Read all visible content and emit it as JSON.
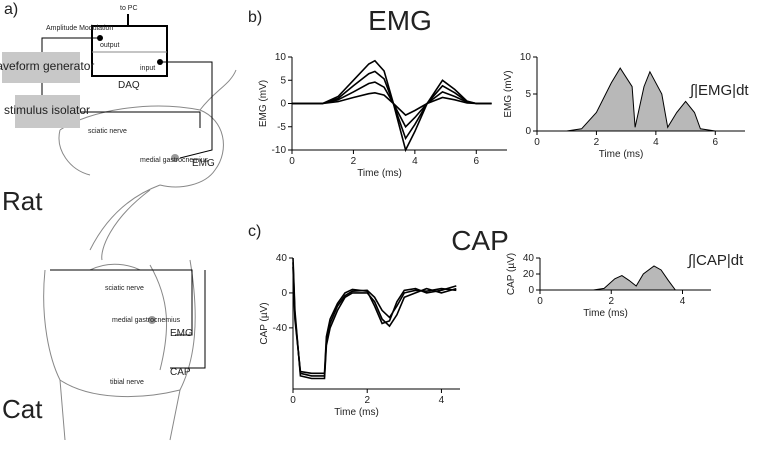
{
  "panel_labels": {
    "a": "a)",
    "b": "b)",
    "c": "c)"
  },
  "setup": {
    "to_pc": "to PC",
    "amplitude_modulation": "Amplitude Modulation",
    "output": "output",
    "input": "input",
    "daq": "DAQ",
    "waveform_generator": "waveform generator",
    "stimulus_isolator": "stimulus isolator"
  },
  "rat": {
    "label": "Rat",
    "sciatic_nerve": "sciatic nerve",
    "muscle": "medial gastrocnemius",
    "emg": "EMG"
  },
  "cat": {
    "label": "Cat",
    "sciatic_nerve": "sciatic nerve",
    "muscle": "medial gastrocnemius",
    "emg": "EMG",
    "cap": "CAP",
    "tibial_nerve": "tibial nerve"
  },
  "chart_data": [
    {
      "type": "line",
      "title": "EMG",
      "x_label": "Time (ms)",
      "y_label": "EMG (mV)",
      "xlim": [
        0,
        7
      ],
      "ylim": [
        -10,
        10
      ],
      "xticks": [
        0,
        2,
        4,
        6
      ],
      "yticks": [
        -10,
        -5,
        0,
        5,
        10
      ],
      "x": [
        0,
        1,
        1.5,
        2,
        2.5,
        2.7,
        3,
        3.3,
        3.7,
        4,
        4.4,
        4.9,
        5.3,
        5.7,
        6,
        6.5
      ],
      "series": [
        {
          "color": "#000000",
          "values": [
            0,
            0,
            1.5,
            5,
            8.5,
            9.2,
            7,
            0,
            -10,
            -6,
            0,
            5,
            3,
            0.5,
            0,
            0
          ]
        },
        {
          "color": "#000000",
          "values": [
            0,
            0,
            1.1,
            3.8,
            6.4,
            6.9,
            5.3,
            0,
            -7.5,
            -4.5,
            0,
            3.8,
            2.3,
            0.4,
            0,
            0
          ]
        },
        {
          "color": "#000000",
          "values": [
            0,
            0,
            0.8,
            2.5,
            4.3,
            4.6,
            3.5,
            0,
            -5,
            -3,
            0,
            2.5,
            1.5,
            0.3,
            0,
            0
          ]
        },
        {
          "color": "#000000",
          "values": [
            0,
            0,
            0.4,
            1.3,
            2.1,
            2.3,
            1.8,
            0,
            -2.5,
            -1.5,
            0,
            1.3,
            0.8,
            0.1,
            0,
            0
          ]
        }
      ]
    },
    {
      "type": "area",
      "annotation": "∫|EMG|dt",
      "x_label": "Time (ms)",
      "y_label": "EMG (mV)",
      "xlim": [
        0,
        7
      ],
      "ylim": [
        0,
        10
      ],
      "xticks": [
        0,
        2,
        4,
        6
      ],
      "yticks": [
        0,
        5,
        10
      ],
      "x": [
        0,
        1,
        1.5,
        2,
        2.5,
        2.8,
        3.2,
        3.3,
        3.6,
        3.8,
        4.2,
        4.4,
        4.7,
        5,
        5.3,
        5.5,
        6,
        7
      ],
      "series": [
        {
          "color": "#b8b8b8",
          "values": [
            0,
            0,
            0.3,
            2.5,
            6.5,
            8.5,
            6,
            0.5,
            6,
            8,
            5,
            0.5,
            2.5,
            4,
            2.5,
            0.3,
            0,
            0
          ]
        }
      ]
    },
    {
      "type": "line",
      "title": "CAP",
      "x_label": "Time (ms)",
      "y_label": "CAP (µV)",
      "xlim": [
        0,
        4.5
      ],
      "ylim": [
        -110,
        40
      ],
      "xticks": [
        0,
        2,
        4
      ],
      "yticks": [
        -40,
        0,
        40
      ],
      "x": [
        0,
        0.05,
        0.2,
        0.5,
        0.85,
        0.9,
        1.0,
        1.2,
        1.4,
        1.6,
        2.0,
        2.2,
        2.4,
        2.6,
        2.8,
        3.0,
        3.3,
        3.6,
        4.0,
        4.4
      ],
      "series": [
        {
          "color": "#000000",
          "values": [
            40,
            -20,
            -95,
            -98,
            -98,
            -60,
            -40,
            -20,
            -5,
            0,
            0,
            -10,
            -30,
            -38,
            -25,
            -5,
            0,
            5,
            0,
            5
          ]
        },
        {
          "color": "#000000",
          "values": [
            35,
            -25,
            -92,
            -95,
            -95,
            -55,
            -35,
            -15,
            -3,
            2,
            3,
            -5,
            -20,
            -28,
            -15,
            0,
            3,
            2,
            5,
            3
          ]
        },
        {
          "color": "#000000",
          "values": [
            30,
            -30,
            -90,
            -92,
            -92,
            -50,
            -30,
            -12,
            0,
            4,
            2,
            -15,
            -35,
            -32,
            -10,
            3,
            5,
            0,
            3,
            8
          ]
        }
      ]
    },
    {
      "type": "area",
      "annotation": "∫|CAP|dt",
      "x_label": "Time (ms)",
      "y_label": "CAP (µV)",
      "xlim": [
        0,
        4.8
      ],
      "ylim": [
        0,
        40
      ],
      "xticks": [
        0,
        2,
        4
      ],
      "yticks": [
        0,
        20,
        40
      ],
      "x": [
        0,
        1.5,
        1.8,
        2.1,
        2.3,
        2.5,
        2.7,
        2.9,
        3.2,
        3.4,
        3.6,
        3.8,
        4.8
      ],
      "series": [
        {
          "color": "#b8b8b8",
          "values": [
            0,
            0,
            2,
            14,
            18,
            12,
            5,
            20,
            30,
            25,
            12,
            0,
            0
          ]
        }
      ]
    }
  ]
}
